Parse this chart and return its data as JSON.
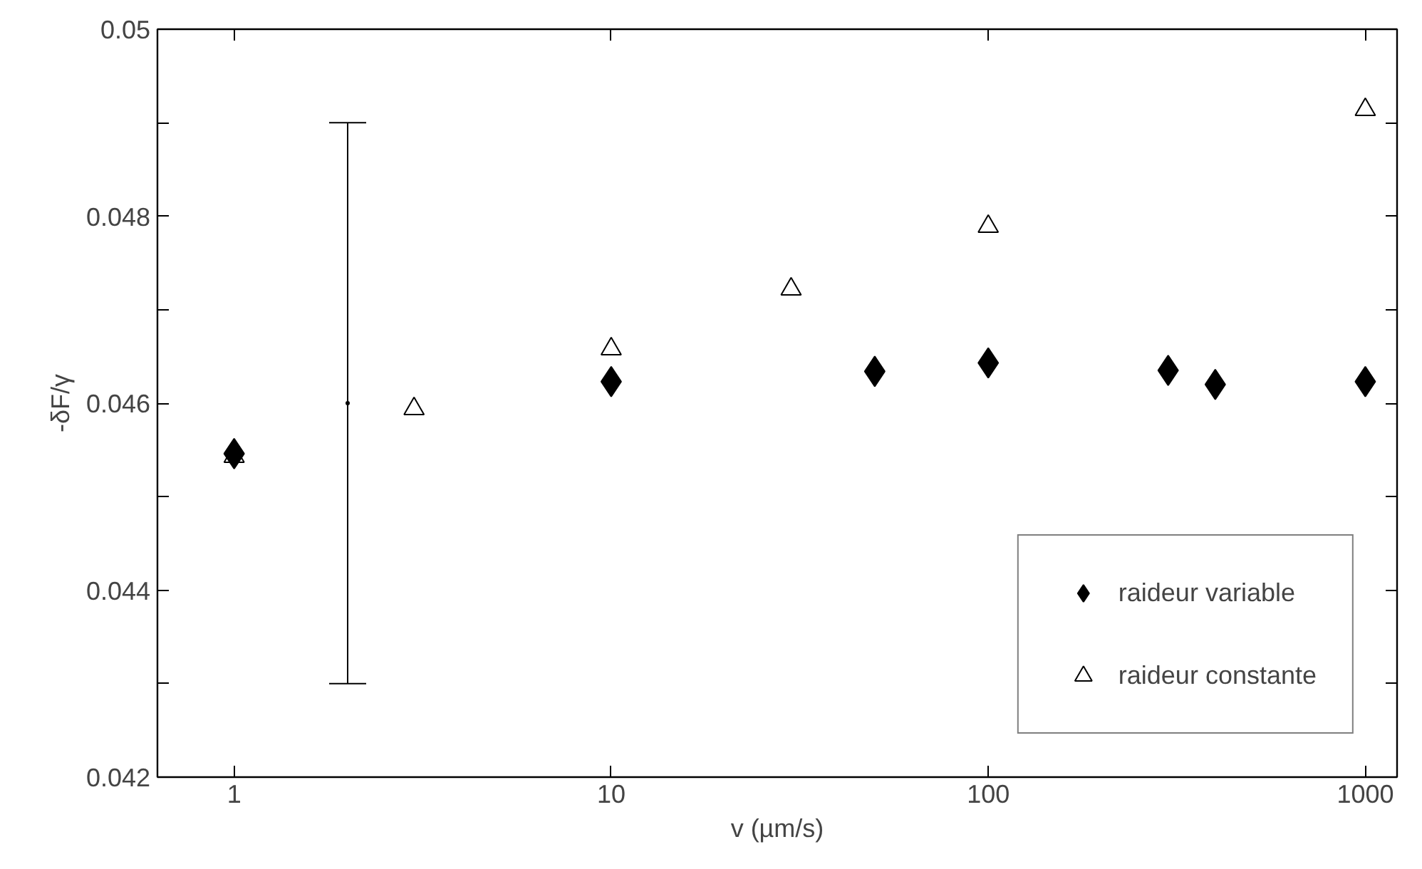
{
  "chart_data": {
    "type": "scatter",
    "xlabel": "v (µm/s)",
    "ylabel": "-δF/γ",
    "log": "x",
    "xlim": [
      0.626,
      1214
    ],
    "xticks": [
      1,
      10,
      100,
      1000
    ],
    "ylim": [
      0.042,
      0.05
    ],
    "yticks": [
      0.042,
      {
        "value": 0.043,
        "label": null
      },
      0.044,
      {
        "value": 0.045,
        "label": null
      },
      0.046,
      {
        "value": 0.047,
        "label": null
      },
      0.048,
      {
        "value": 0.049,
        "label": null
      },
      0.05
    ],
    "grid": false,
    "legend": "bottom right",
    "series": [
      {
        "name": "raideur variable",
        "color": "#000000",
        "marker": "diamond",
        "x": [
          1,
          10,
          50,
          100,
          300,
          400,
          1000
        ],
        "values": [
          0.04546,
          0.04623,
          0.04634,
          0.04643,
          0.04635,
          0.0462,
          0.04623
        ]
      },
      {
        "name": "raideur constante",
        "color": "#000000",
        "marker": "triangle",
        "x": [
          1,
          3,
          10,
          30,
          100,
          1000
        ],
        "values": [
          0.04543,
          0.04594,
          0.04658,
          0.04722,
          0.04789,
          0.04914
        ]
      },
      {
        "color": "#000000",
        "marker": "none",
        "x": [
          2
        ],
        "values": [
          0.046
        ],
        "errors": [
          [
            0.043,
            0.049
          ]
        ]
      }
    ]
  }
}
